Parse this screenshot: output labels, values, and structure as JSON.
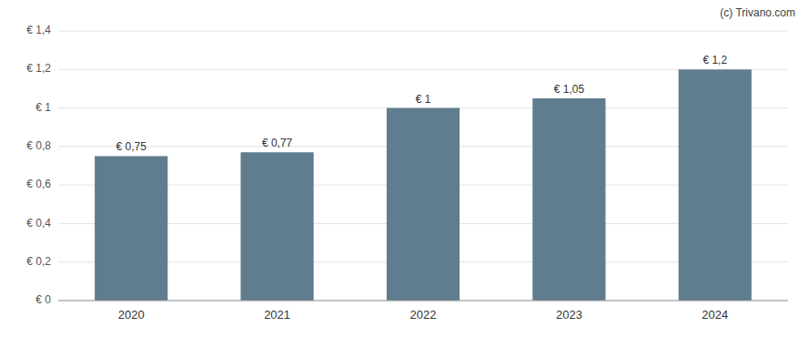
{
  "chart_data": {
    "type": "bar",
    "categories": [
      "2020",
      "2021",
      "2022",
      "2023",
      "2024"
    ],
    "values": [
      0.75,
      0.77,
      1.0,
      1.05,
      1.2
    ],
    "value_labels": [
      "€ 0,75",
      "€ 0,77",
      "€ 1",
      "€ 1,05",
      "€ 1,2"
    ],
    "data_labels": true,
    "color": "#5f7d8e",
    "ylim": [
      0,
      1.4
    ],
    "yticks": [
      {
        "value": 0,
        "label": "€ 0"
      },
      {
        "value": 0.2,
        "label": "€ 0,2"
      },
      {
        "value": 0.4,
        "label": "€ 0,4"
      },
      {
        "value": 0.6,
        "label": "€ 0,6"
      },
      {
        "value": 0.8,
        "label": "€ 0,8"
      },
      {
        "value": 1.0,
        "label": "€ 1"
      },
      {
        "value": 1.2,
        "label": "€ 1,2"
      },
      {
        "value": 1.4,
        "label": "€ 1,4"
      }
    ],
    "grid": true,
    "annotations": [
      "(c) Trivano.com"
    ]
  }
}
